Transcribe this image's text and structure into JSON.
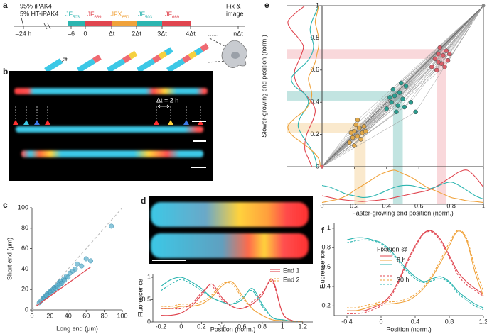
{
  "panel_a": {
    "letter": "a",
    "mix": [
      "95% iPAK4",
      "5% HT-iPAK4"
    ],
    "fix": [
      "Fix &",
      "image"
    ],
    "timeline": [
      "–24 h",
      "–6",
      "0",
      "Δt",
      "2Δt",
      "3Δt",
      "4Δt",
      "......",
      "nΔt"
    ],
    "dyes": [
      {
        "name": "JF",
        "sub": "503",
        "color": "#2bb5b0"
      },
      {
        "name": "JF",
        "sub": "669",
        "color": "#e0454f"
      },
      {
        "name": "JFX",
        "sub": "650",
        "color": "#f0a23a"
      },
      {
        "name": "JF",
        "sub": "503",
        "color": "#2bb5b0"
      },
      {
        "name": "JF",
        "sub": "669",
        "color": "#e0454f"
      }
    ]
  },
  "panel_b": {
    "letter": "b",
    "annotation": "Δt = 2 h"
  },
  "chart_data": [
    {
      "panel": "c",
      "type": "scatter",
      "xlabel": "Long end (μm)",
      "ylabel": "Short end (μm)",
      "xlim": [
        0,
        100
      ],
      "ylim": [
        0,
        100
      ],
      "xticks": [
        0,
        20,
        40,
        60,
        80,
        100
      ],
      "yticks": [
        0,
        20,
        40,
        60,
        80,
        100
      ],
      "color": "#5aaecb",
      "x": [
        8,
        10,
        12,
        13,
        14,
        15,
        16,
        17,
        18,
        19,
        20,
        21,
        22,
        23,
        24,
        25,
        26,
        27,
        28,
        29,
        30,
        31,
        32,
        33,
        35,
        36,
        38,
        40,
        42,
        45,
        48,
        50,
        55,
        60,
        65,
        88
      ],
      "values": [
        7,
        9,
        11,
        12,
        12,
        14,
        14,
        16,
        15,
        17,
        18,
        17,
        19,
        20,
        19,
        22,
        21,
        23,
        24,
        22,
        27,
        25,
        28,
        26,
        30,
        29,
        33,
        32,
        36,
        38,
        40,
        45,
        43,
        50,
        48,
        82
      ],
      "fit": {
        "color": "#e0454f",
        "x": [
          5,
          65
        ],
        "values": [
          4,
          42
        ]
      }
    },
    {
      "panel": "d",
      "type": "line",
      "xlabel": "Position (norm.)",
      "ylabel": "Fluorescence",
      "xlim": [
        -0.28,
        1.3
      ],
      "ylim": [
        0,
        1.08
      ],
      "xticks": [
        -0.2,
        0,
        0.2,
        0.4,
        0.6,
        0.8,
        1,
        1.2
      ],
      "yticks": [
        0,
        0.5,
        1
      ],
      "x": [
        -0.2,
        -0.1,
        0,
        0.1,
        0.2,
        0.3,
        0.4,
        0.5,
        0.6,
        0.7,
        0.8,
        0.9,
        1,
        1.1,
        1.2
      ],
      "series": [
        {
          "color": "#e0454f",
          "dash": false,
          "values": [
            0.15,
            0.15,
            0.2,
            0.35,
            0.6,
            0.85,
            0.55,
            0.35,
            0.3,
            0.4,
            0.6,
            0.95,
            0.2,
            0.03,
            0.02
          ]
        },
        {
          "color": "#2bb5b0",
          "dash": false,
          "values": [
            0.8,
            0.95,
            1.0,
            0.9,
            0.75,
            0.55,
            0.45,
            0.4,
            0.5,
            0.75,
            0.4,
            0.1,
            0.05,
            0.02,
            0.02
          ]
        },
        {
          "color": "#f0a23a",
          "dash": false,
          "values": [
            0.3,
            0.3,
            0.35,
            0.35,
            0.4,
            0.55,
            0.8,
            0.9,
            0.6,
            0.3,
            0.15,
            0.05,
            0.03,
            0.02,
            0.02
          ]
        },
        {
          "color": "#e0454f",
          "dash": true,
          "values": [
            0.3,
            0.3,
            0.3,
            0.4,
            0.65,
            0.8,
            0.5,
            0.35,
            0.3,
            0.45,
            0.65,
            0.9,
            0.2,
            0.03,
            0.02
          ]
        },
        {
          "color": "#2bb5b0",
          "dash": true,
          "values": [
            0.7,
            0.85,
            0.95,
            0.85,
            0.7,
            0.55,
            0.45,
            0.4,
            0.55,
            0.7,
            0.35,
            0.1,
            0.05,
            0.02,
            0.02
          ]
        },
        {
          "color": "#f0a23a",
          "dash": true,
          "values": [
            0.35,
            0.35,
            0.4,
            0.4,
            0.45,
            0.6,
            0.85,
            0.85,
            0.55,
            0.3,
            0.15,
            0.05,
            0.03,
            0.02,
            0.02
          ]
        }
      ],
      "legend": [
        {
          "label": "End 1",
          "color": "#e0454f",
          "dash": false
        },
        {
          "label": "End 2",
          "color": "#f0a23a",
          "dash": true
        }
      ]
    },
    {
      "panel": "e",
      "type": "scatter",
      "xlabel": "Faster-growing end position (norm.)",
      "ylabel": "Slower-growing end position (norm.)",
      "xlim": [
        0,
        1
      ],
      "ylim": [
        0,
        1
      ],
      "xticks": [
        0,
        0.2,
        0.4,
        0.6,
        0.8,
        1
      ],
      "yticks": [
        0,
        0.2,
        0.4,
        0.6,
        0.8,
        1
      ],
      "line_color": "#9a9a9a",
      "series": [
        {
          "color": "#e0a84a",
          "x": [
            0.17,
            0.19,
            0.2,
            0.22,
            0.23,
            0.25,
            0.21,
            0.24,
            0.26,
            0.18,
            0.27,
            0.22,
            0.2
          ],
          "values": [
            0.15,
            0.18,
            0.22,
            0.19,
            0.24,
            0.21,
            0.26,
            0.17,
            0.25,
            0.21,
            0.22,
            0.29,
            0.13
          ]
        },
        {
          "color": "#2a9d8f",
          "x": [
            0.4,
            0.43,
            0.45,
            0.47,
            0.48,
            0.5,
            0.52,
            0.44,
            0.55,
            0.46,
            0.42,
            0.49,
            0.58,
            0.51
          ],
          "values": [
            0.36,
            0.4,
            0.44,
            0.38,
            0.46,
            0.42,
            0.5,
            0.48,
            0.4,
            0.34,
            0.43,
            0.52,
            0.34,
            0.37
          ]
        },
        {
          "color": "#d95f6a",
          "x": [
            0.68,
            0.7,
            0.72,
            0.74,
            0.75,
            0.77,
            0.73,
            0.78,
            0.71,
            0.76,
            0.79,
            0.72
          ],
          "values": [
            0.62,
            0.67,
            0.7,
            0.64,
            0.69,
            0.72,
            0.74,
            0.66,
            0.6,
            0.62,
            0.7,
            0.65
          ]
        }
      ],
      "bands": [
        {
          "color": "#f0c070",
          "x": [
            0.2,
            0.27
          ],
          "y": [
            0.21,
            0.27
          ]
        },
        {
          "color": "#4fb3a9",
          "x": [
            0.44,
            0.5
          ],
          "y": [
            0.41,
            0.47
          ]
        },
        {
          "color": "#ee8f97",
          "x": [
            0.71,
            0.77
          ],
          "y": [
            0.67,
            0.73
          ]
        }
      ],
      "marginals": {
        "positions": [
          0,
          0.05,
          0.1,
          0.15,
          0.2,
          0.25,
          0.3,
          0.35,
          0.4,
          0.45,
          0.5,
          0.55,
          0.6,
          0.65,
          0.7,
          0.75,
          0.8,
          0.85,
          0.9,
          0.95,
          1
        ],
        "bottom": [
          {
            "color": "#e0454f",
            "values": [
              0.25,
              0.2,
              0.15,
              0.12,
              0.1,
              0.08,
              0.1,
              0.12,
              0.15,
              0.2,
              0.25,
              0.3,
              0.35,
              0.4,
              0.5,
              0.65,
              0.8,
              0.95,
              1.0,
              0.8,
              0.5
            ]
          },
          {
            "color": "#2bb5b0",
            "values": [
              0.55,
              0.5,
              0.4,
              0.3,
              0.25,
              0.2,
              0.22,
              0.3,
              0.4,
              0.5,
              0.55,
              0.55,
              0.5,
              0.45,
              0.5,
              0.6,
              0.65,
              0.55,
              0.4,
              0.25,
              0.15
            ]
          },
          {
            "color": "#f0a23a",
            "values": [
              0.05,
              0.1,
              0.15,
              0.25,
              0.4,
              0.55,
              0.7,
              0.85,
              0.95,
              1.0,
              0.9,
              0.8,
              0.65,
              0.5,
              0.4,
              0.3,
              0.2,
              0.15,
              0.1,
              0.08,
              0.05
            ]
          }
        ],
        "left": [
          {
            "color": "#e0454f",
            "values": [
              0.3,
              0.4,
              0.5,
              0.5,
              0.45,
              0.35,
              0.25,
              0.2,
              0.3,
              0.5,
              0.7,
              0.8,
              0.8,
              0.7,
              0.6,
              0.55,
              0.7,
              0.9,
              1.0,
              0.8,
              0.5
            ]
          },
          {
            "color": "#2bb5b0",
            "values": [
              0.15,
              0.2,
              0.3,
              0.45,
              0.6,
              0.7,
              0.65,
              0.5,
              0.4,
              0.5,
              0.8,
              0.9,
              0.7,
              0.45,
              0.3,
              0.25,
              0.3,
              0.35,
              0.3,
              0.2,
              0.1
            ]
          },
          {
            "color": "#f0a23a",
            "values": [
              0.05,
              0.1,
              0.3,
              0.6,
              0.9,
              1.0,
              0.8,
              0.5,
              0.35,
              0.3,
              0.35,
              0.4,
              0.3,
              0.2,
              0.15,
              0.1,
              0.1,
              0.15,
              0.2,
              0.15,
              0.1
            ]
          }
        ]
      }
    },
    {
      "panel": "f",
      "type": "line",
      "xlabel": "Position (norm.)",
      "ylabel": "Fluorescence",
      "xlim": [
        -0.55,
        1.2
      ],
      "ylim": [
        0.1,
        1.05
      ],
      "xticks": [
        -0.4,
        0,
        0.4,
        0.8,
        1.2
      ],
      "yticks": [
        0.2,
        0.4,
        0.6,
        0.8,
        1
      ],
      "x": [
        -0.4,
        -0.3,
        -0.2,
        -0.1,
        0,
        0.1,
        0.2,
        0.3,
        0.4,
        0.5,
        0.6,
        0.7,
        0.8,
        0.9,
        1,
        1.1,
        1.2
      ],
      "series": [
        {
          "color": "#e0454f",
          "dash": false,
          "values": [
            0.15,
            0.15,
            0.15,
            0.18,
            0.22,
            0.3,
            0.45,
            0.65,
            0.82,
            0.95,
            0.97,
            0.88,
            0.72,
            0.55,
            0.45,
            0.38,
            0.32
          ]
        },
        {
          "color": "#f0a23a",
          "dash": false,
          "values": [
            0.15,
            0.15,
            0.17,
            0.2,
            0.22,
            0.22,
            0.23,
            0.25,
            0.3,
            0.38,
            0.5,
            0.65,
            0.82,
            0.97,
            0.88,
            0.55,
            0.3
          ]
        },
        {
          "color": "#2bb5b0",
          "dash": false,
          "values": [
            0.88,
            0.9,
            0.9,
            0.88,
            0.85,
            0.78,
            0.68,
            0.58,
            0.5,
            0.45,
            0.48,
            0.5,
            0.45,
            0.35,
            0.28,
            0.22,
            0.18
          ]
        },
        {
          "color": "#e0454f",
          "dash": true,
          "values": [
            0.12,
            0.12,
            0.13,
            0.16,
            0.2,
            0.28,
            0.43,
            0.63,
            0.8,
            0.94,
            0.96,
            0.86,
            0.7,
            0.52,
            0.42,
            0.36,
            0.3
          ]
        },
        {
          "color": "#f0a23a",
          "dash": true,
          "values": [
            0.18,
            0.18,
            0.2,
            0.22,
            0.24,
            0.24,
            0.25,
            0.27,
            0.32,
            0.4,
            0.52,
            0.68,
            0.85,
            0.98,
            0.9,
            0.6,
            0.35
          ]
        },
        {
          "color": "#2bb5b0",
          "dash": true,
          "values": [
            0.85,
            0.87,
            0.88,
            0.87,
            0.84,
            0.76,
            0.66,
            0.56,
            0.48,
            0.44,
            0.46,
            0.48,
            0.44,
            0.33,
            0.26,
            0.2,
            0.16
          ]
        }
      ],
      "legend": {
        "title": "Fixation @",
        "entries": [
          {
            "label": "8 h",
            "dash": false
          },
          {
            "label": "30 h",
            "dash": true
          }
        ]
      }
    }
  ]
}
